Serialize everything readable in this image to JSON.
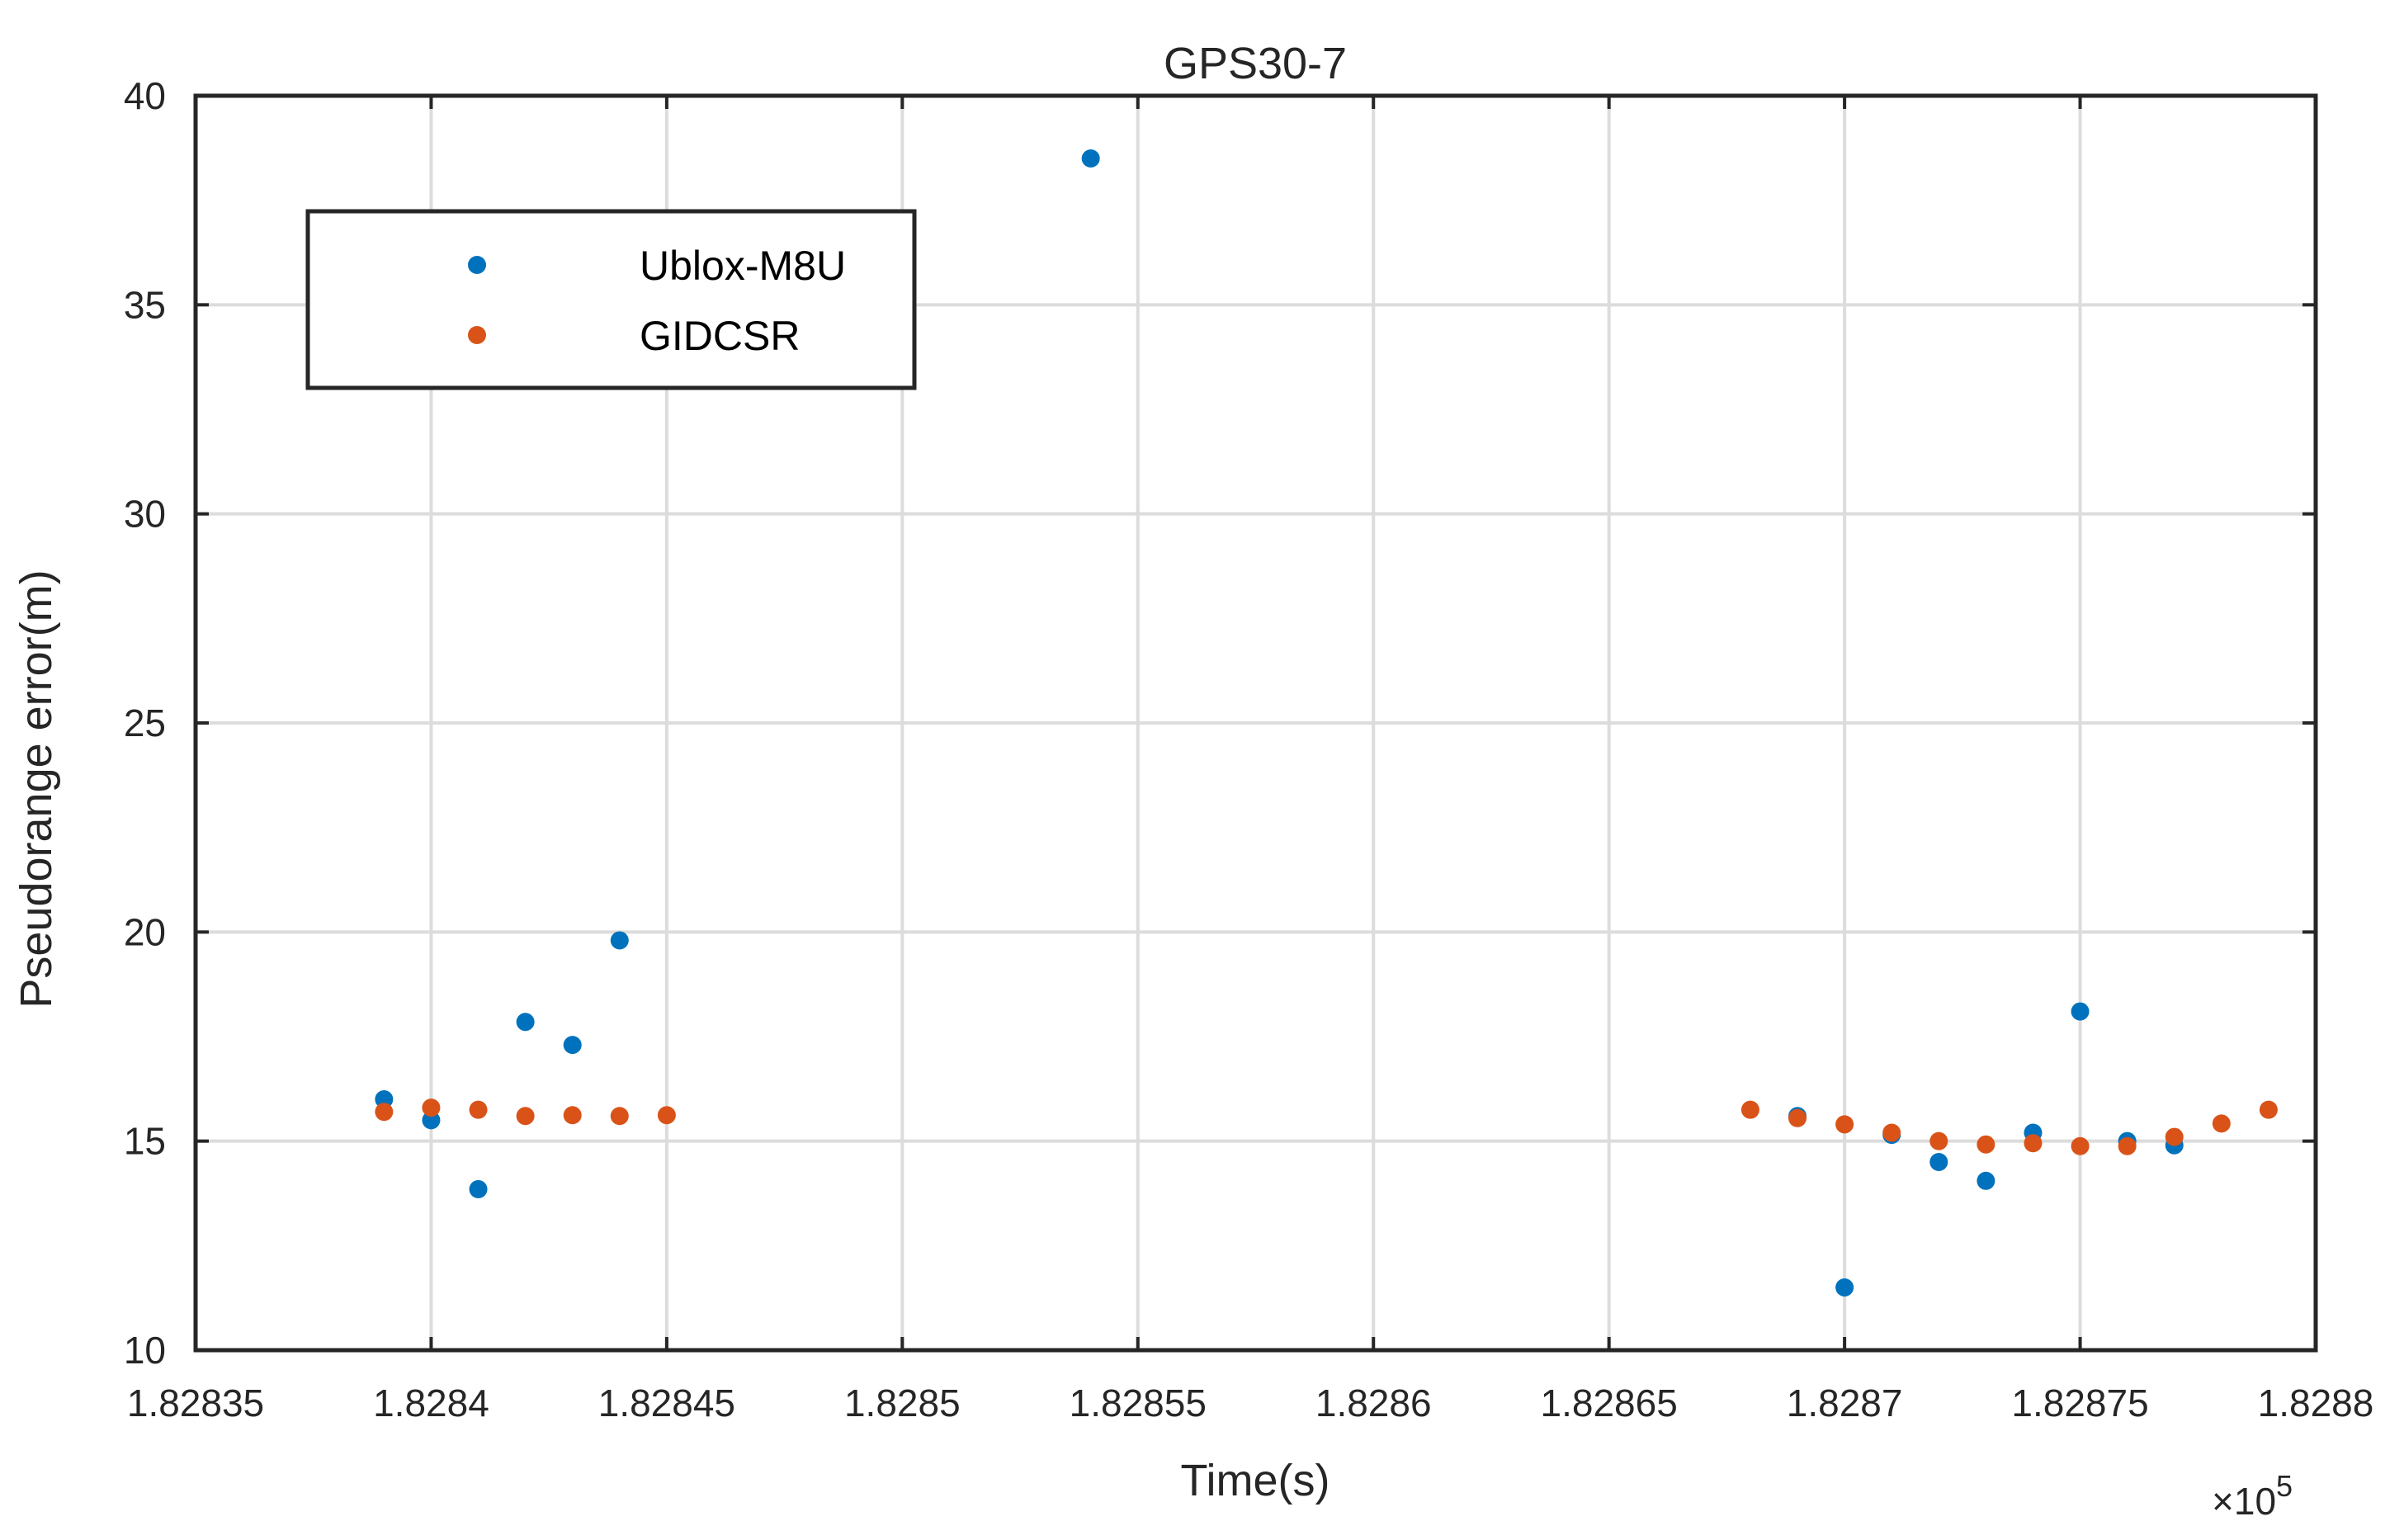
{
  "chart_data": {
    "type": "scatter",
    "title": "GPS30-7",
    "xlabel": "Time(s)",
    "ylabel": "Pseudorange error(m)",
    "x_exponent_label": "×10",
    "x_exponent_power": "5",
    "xlim": [
      1.82835,
      1.8288
    ],
    "ylim": [
      10,
      40
    ],
    "x_ticks": [
      1.82835,
      1.8284,
      1.82845,
      1.8285,
      1.82855,
      1.8286,
      1.82865,
      1.8287,
      1.82875,
      1.8288
    ],
    "x_tick_labels": [
      "1.82835",
      "1.8284",
      "1.82845",
      "1.8285",
      "1.82855",
      "1.8286",
      "1.82865",
      "1.8287",
      "1.82875",
      "1.8288"
    ],
    "y_ticks": [
      10,
      15,
      20,
      25,
      30,
      35,
      40
    ],
    "y_tick_labels": [
      "10",
      "15",
      "20",
      "25",
      "30",
      "35",
      "40"
    ],
    "grid": true,
    "legend_position": "top-left",
    "series": [
      {
        "name": "Ublox-M8U",
        "color": "#0072BD",
        "points": [
          [
            1.82839,
            16.0
          ],
          [
            1.8284,
            15.5
          ],
          [
            1.82841,
            13.85
          ],
          [
            1.82842,
            17.85
          ],
          [
            1.82843,
            17.3
          ],
          [
            1.82844,
            19.8
          ],
          [
            1.82854,
            38.5
          ],
          [
            1.82869,
            15.6
          ],
          [
            1.8287,
            11.5
          ],
          [
            1.82871,
            15.15
          ],
          [
            1.82872,
            14.5
          ],
          [
            1.82873,
            14.05
          ],
          [
            1.82874,
            15.2
          ],
          [
            1.82875,
            18.1
          ],
          [
            1.82876,
            15.0
          ],
          [
            1.82877,
            14.9
          ]
        ]
      },
      {
        "name": "GIDCSR",
        "color": "#D95319",
        "points": [
          [
            1.82839,
            15.7
          ],
          [
            1.8284,
            15.8
          ],
          [
            1.82841,
            15.75
          ],
          [
            1.82842,
            15.6
          ],
          [
            1.82843,
            15.62
          ],
          [
            1.82844,
            15.6
          ],
          [
            1.82845,
            15.62
          ],
          [
            1.82868,
            15.75
          ],
          [
            1.82869,
            15.55
          ],
          [
            1.8287,
            15.4
          ],
          [
            1.82871,
            15.2
          ],
          [
            1.82872,
            15.0
          ],
          [
            1.82873,
            14.92
          ],
          [
            1.82874,
            14.95
          ],
          [
            1.82875,
            14.88
          ],
          [
            1.82876,
            14.88
          ],
          [
            1.82877,
            15.1
          ],
          [
            1.82878,
            15.42
          ],
          [
            1.82879,
            15.75
          ]
        ]
      }
    ]
  }
}
